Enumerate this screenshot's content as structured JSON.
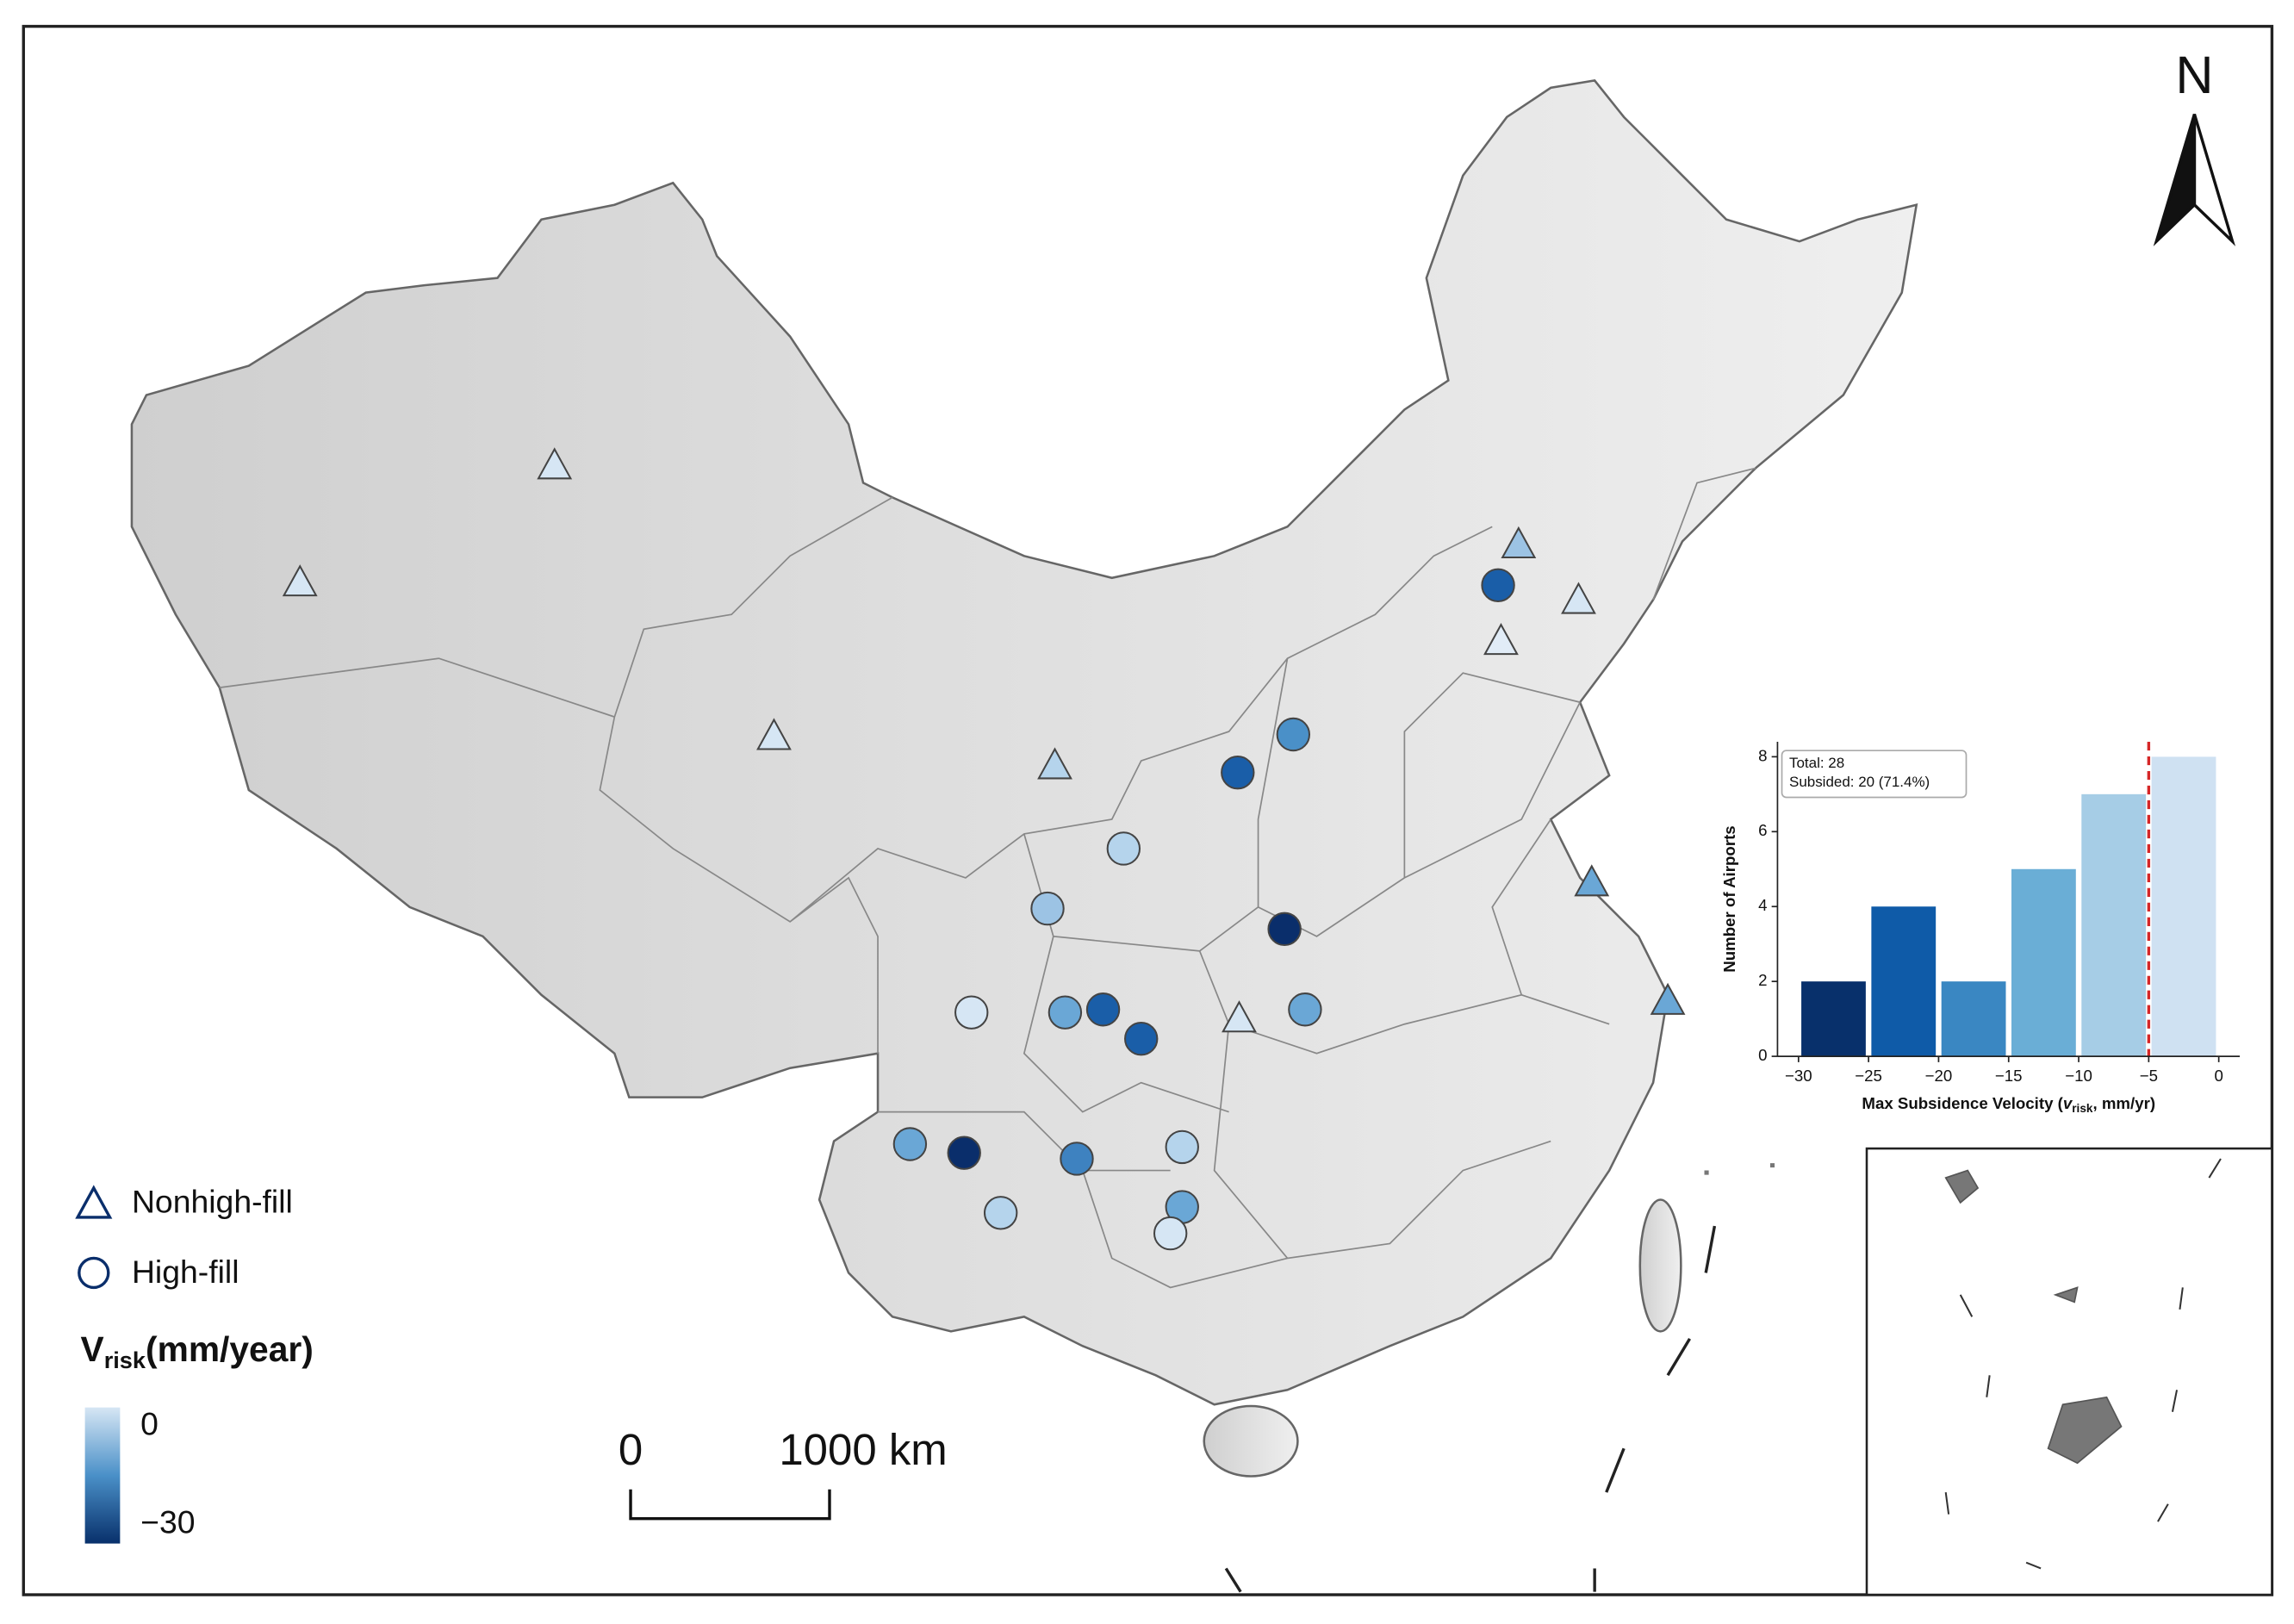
{
  "map": {
    "north_label": "N",
    "scale_bar": {
      "start_label": "0",
      "end_label": "1000 km"
    },
    "legend": {
      "items": [
        "Nonhigh-fill",
        "High-fill"
      ],
      "colorbar": {
        "title_var": "V",
        "title_sub": "risk",
        "title_unit": "(mm/year)",
        "lim": [
          -30,
          0
        ],
        "ticks": [
          0,
          {
            "value": -30,
            "label": "−30"
          }
        ]
      }
    }
  },
  "chart_data": {
    "type": "histogram",
    "bins": [
      -30,
      -25,
      -20,
      -15,
      -10,
      -5,
      0
    ],
    "values": [
      2,
      4,
      2,
      5,
      7,
      8
    ],
    "colors": [
      "#08306b",
      "#0f5ba8",
      "#3a87c2",
      "#6aaed6",
      "#a6cde6",
      "#cfe1f2"
    ],
    "xlim": [
      -31.5,
      1.5
    ],
    "ylim": [
      0,
      8.4
    ],
    "xticks": [
      {
        "value": -30,
        "label": "−30"
      },
      {
        "value": -25,
        "label": "−25"
      },
      {
        "value": -20,
        "label": "−20"
      },
      {
        "value": -15,
        "label": "−15"
      },
      {
        "value": -10,
        "label": "−10"
      },
      {
        "value": -5,
        "label": "−5"
      },
      0
    ],
    "yticks": [
      0,
      2,
      4,
      6,
      8
    ],
    "ylabel": "Number of Airports",
    "xlabel_parts": [
      "Max Subsidence Velocity (",
      "v",
      "risk",
      ", mm/yr)"
    ],
    "annotation": [
      "Total: 28",
      "Subsided: 20 (71.4%)"
    ],
    "reference_line": {
      "value": -5,
      "color": "#d62728"
    }
  }
}
